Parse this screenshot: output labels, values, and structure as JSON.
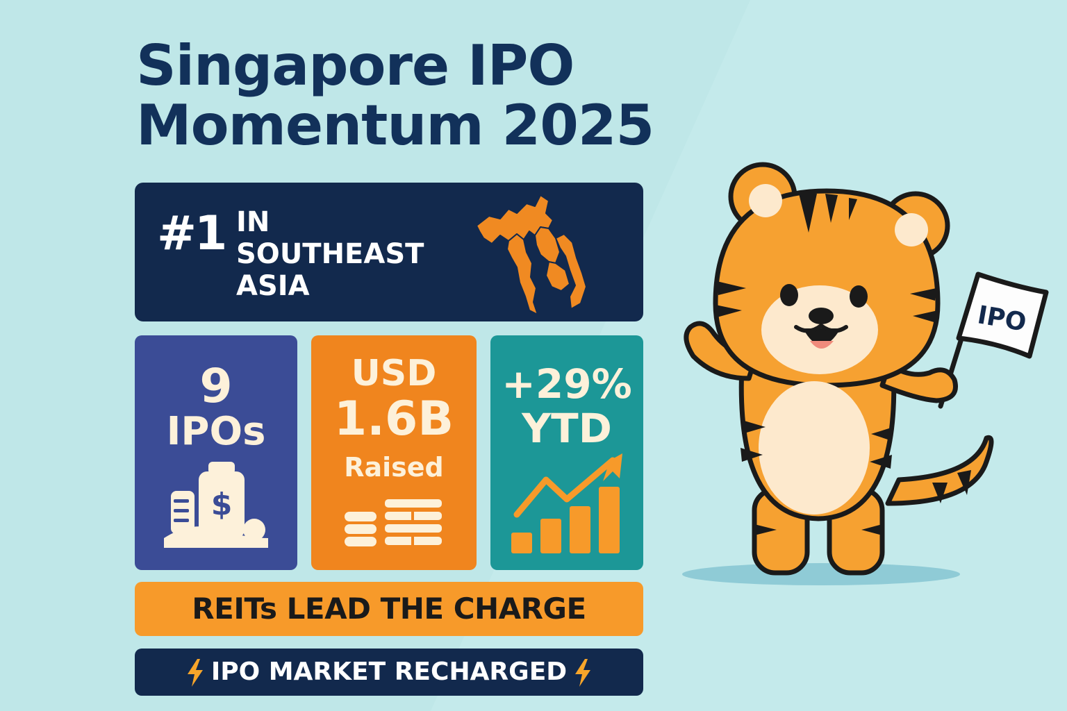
{
  "title": {
    "line1": "Singapore IPO",
    "line2": "Momentum 2025"
  },
  "ranking": {
    "rank": "#1",
    "line1": "IN",
    "line2": "SOUTHEAST",
    "line3": "ASIA"
  },
  "stats": [
    {
      "value": "9",
      "label": "IPOs",
      "icon": "money-bag-icon"
    },
    {
      "value_prefix": "USD",
      "value": "1.6B",
      "label": "Raised",
      "icon": "coin-stack-icon"
    },
    {
      "value": "+29%",
      "label": "YTD",
      "icon": "growth-chart-icon"
    }
  ],
  "highlight": "REITs LEAD THE CHARGE",
  "footer": {
    "text": "IPO MARKET RECHARGED",
    "icon": "lightning-bolt-icon"
  },
  "mascot": {
    "name": "tiger-mascot",
    "flag_text": "IPO"
  },
  "colors": {
    "background": "#bfe7e8",
    "navy": "#12294d",
    "title": "#12315a",
    "blue_card": "#3b4c96",
    "orange_card": "#f0851e",
    "teal_card": "#1c9797",
    "accent_orange": "#f79a2a",
    "cream": "#fdf1da"
  }
}
